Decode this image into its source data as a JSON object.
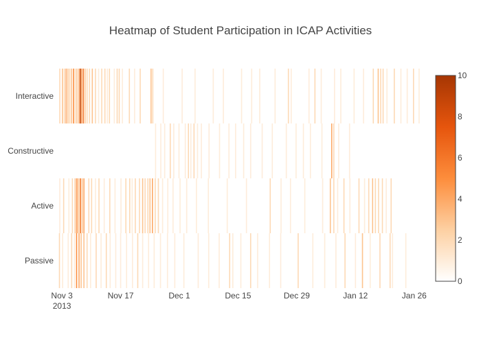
{
  "chart_data": {
    "type": "heatmap",
    "title": "Heatmap of Student Participation in ICAP Activities",
    "xlabel": "",
    "ylabel": "",
    "x_range": [
      "2013-11-02",
      "2014-01-28"
    ],
    "x_ticks": [
      {
        "date": "2013-11-03",
        "label": "Nov 3",
        "sublabel": "2013"
      },
      {
        "date": "2013-11-17",
        "label": "Nov 17",
        "sublabel": ""
      },
      {
        "date": "2013-12-01",
        "label": "Dec 1",
        "sublabel": ""
      },
      {
        "date": "2013-12-15",
        "label": "Dec 15",
        "sublabel": ""
      },
      {
        "date": "2013-12-29",
        "label": "Dec 29",
        "sublabel": ""
      },
      {
        "date": "2014-01-12",
        "label": "Jan 12",
        "sublabel": ""
      },
      {
        "date": "2014-01-26",
        "label": "Jan 26",
        "sublabel": ""
      }
    ],
    "categories": [
      "Interactive",
      "Constructive",
      "Active",
      "Passive"
    ],
    "colorscale": [
      "#ffffff",
      "#fdd0a2",
      "#fd8d3c",
      "#e6550d",
      "#a63603"
    ],
    "zmin": 0,
    "zmax": 10,
    "colorbar_ticks": [
      0,
      2,
      4,
      6,
      8,
      10
    ],
    "series": [
      {
        "category": "Interactive",
        "points": [
          [
            "2013-11-02 12:00",
            2
          ],
          [
            "2013-11-03 03:00",
            3
          ],
          [
            "2013-11-03 14:00",
            2
          ],
          [
            "2013-11-04 00:00",
            4
          ],
          [
            "2013-11-04 10:00",
            3
          ],
          [
            "2013-11-04 20:00",
            2
          ],
          [
            "2013-11-05 06:00",
            3
          ],
          [
            "2013-11-05 18:00",
            5
          ],
          [
            "2013-11-06 04:00",
            2
          ],
          [
            "2013-11-06 14:00",
            3
          ],
          [
            "2013-11-07 02:00",
            4
          ],
          [
            "2013-11-07 10:00",
            9
          ],
          [
            "2013-11-07 16:00",
            4
          ],
          [
            "2013-11-08 02:00",
            6
          ],
          [
            "2013-11-08 12:00",
            3
          ],
          [
            "2013-11-09 00:00",
            2
          ],
          [
            "2013-11-09 14:00",
            2
          ],
          [
            "2013-11-10 06:00",
            3
          ],
          [
            "2013-11-11 00:00",
            2
          ],
          [
            "2013-11-11 18:00",
            1
          ],
          [
            "2013-11-12 12:00",
            2
          ],
          [
            "2013-11-13 06:00",
            2
          ],
          [
            "2013-11-13 20:00",
            1
          ],
          [
            "2013-11-14 08:00",
            2
          ],
          [
            "2013-11-15 12:00",
            1
          ],
          [
            "2013-11-16 04:00",
            2
          ],
          [
            "2013-11-16 16:00",
            2
          ],
          [
            "2013-11-17 10:00",
            1
          ],
          [
            "2013-11-19 02:00",
            2
          ],
          [
            "2013-11-20 08:00",
            1
          ],
          [
            "2013-11-21 16:00",
            2
          ],
          [
            "2013-11-24 06:00",
            3
          ],
          [
            "2013-11-24 16:00",
            2
          ],
          [
            "2013-11-27 04:00",
            1
          ],
          [
            "2013-12-01 16:00",
            1
          ],
          [
            "2013-12-04 18:00",
            1
          ],
          [
            "2013-12-09 02:00",
            1
          ],
          [
            "2013-12-11 12:00",
            1
          ],
          [
            "2013-12-15 20:00",
            1
          ],
          [
            "2013-12-18 06:00",
            1
          ],
          [
            "2013-12-20 04:00",
            1
          ],
          [
            "2013-12-23 20:00",
            1
          ],
          [
            "2013-12-27 00:00",
            2
          ],
          [
            "2013-12-27 16:00",
            1
          ],
          [
            "2013-12-31 22:00",
            1
          ],
          [
            "2014-01-02 08:00",
            2
          ],
          [
            "2014-01-03 20:00",
            1
          ],
          [
            "2014-01-07 00:00",
            1
          ],
          [
            "2014-01-08 12:00",
            1
          ],
          [
            "2014-01-11 16:00",
            1
          ],
          [
            "2014-01-13 22:00",
            1
          ],
          [
            "2014-01-16 06:00",
            2
          ],
          [
            "2014-01-17 10:00",
            3
          ],
          [
            "2014-01-18 00:00",
            2
          ],
          [
            "2014-01-18 14:00",
            2
          ],
          [
            "2014-01-19 12:00",
            1
          ],
          [
            "2014-01-21 06:00",
            2
          ],
          [
            "2014-01-22 20:00",
            1
          ],
          [
            "2014-01-24 08:00",
            1
          ],
          [
            "2014-01-25 20:00",
            2
          ],
          [
            "2014-01-27 04:00",
            1
          ]
        ]
      },
      {
        "category": "Constructive",
        "points": [
          [
            "2013-11-25 08:00",
            1
          ],
          [
            "2013-11-26 14:00",
            1
          ],
          [
            "2013-11-27 12:00",
            1
          ],
          [
            "2013-11-28 20:00",
            2
          ],
          [
            "2013-11-29 16:00",
            1
          ],
          [
            "2013-11-30 22:00",
            1
          ],
          [
            "2013-12-02 10:00",
            1
          ],
          [
            "2013-12-03 04:00",
            2
          ],
          [
            "2013-12-03 18:00",
            1
          ],
          [
            "2013-12-04 12:00",
            2
          ],
          [
            "2013-12-05 08:00",
            1
          ],
          [
            "2013-12-06 06:00",
            1
          ],
          [
            "2013-12-08 02:00",
            1
          ],
          [
            "2013-12-10 14:00",
            1
          ],
          [
            "2013-12-12 20:00",
            1
          ],
          [
            "2013-12-14 10:00",
            1
          ],
          [
            "2013-12-16 08:00",
            1
          ],
          [
            "2013-12-18 00:00",
            1
          ],
          [
            "2013-12-20 18:00",
            1
          ],
          [
            "2013-12-23 04:00",
            1
          ],
          [
            "2013-12-26 12:00",
            1
          ],
          [
            "2013-12-28 20:00",
            1
          ],
          [
            "2013-12-30 14:00",
            1
          ],
          [
            "2014-01-01 06:00",
            1
          ],
          [
            "2014-01-04 00:00",
            1
          ],
          [
            "2014-01-06 08:00",
            4
          ],
          [
            "2014-01-06 20:00",
            2
          ],
          [
            "2014-01-08 00:00",
            1
          ],
          [
            "2014-01-10 14:00",
            1
          ]
        ]
      },
      {
        "category": "Active",
        "points": [
          [
            "2013-11-02 12:00",
            1
          ],
          [
            "2013-11-03 10:00",
            2
          ],
          [
            "2013-11-04 16:00",
            1
          ],
          [
            "2013-11-05 12:00",
            2
          ],
          [
            "2013-11-06 04:00",
            3
          ],
          [
            "2013-11-06 14:00",
            5
          ],
          [
            "2013-11-07 00:00",
            3
          ],
          [
            "2013-11-07 10:00",
            6
          ],
          [
            "2013-11-07 20:00",
            3
          ],
          [
            "2013-11-08 06:00",
            4
          ],
          [
            "2013-11-09 10:00",
            2
          ],
          [
            "2013-11-10 02:00",
            2
          ],
          [
            "2013-11-11 00:00",
            1
          ],
          [
            "2013-11-11 20:00",
            2
          ],
          [
            "2013-11-13 02:00",
            1
          ],
          [
            "2013-11-14 10:00",
            2
          ],
          [
            "2013-11-15 16:00",
            1
          ],
          [
            "2013-11-17 02:00",
            1
          ],
          [
            "2013-11-18 06:00",
            2
          ],
          [
            "2013-11-19 04:00",
            2
          ],
          [
            "2013-11-19 18:00",
            1
          ],
          [
            "2013-11-20 12:00",
            2
          ],
          [
            "2013-11-21 12:00",
            2
          ],
          [
            "2013-11-22 06:00",
            3
          ],
          [
            "2013-11-22 20:00",
            2
          ],
          [
            "2013-11-23 12:00",
            2
          ],
          [
            "2013-11-24 00:00",
            3
          ],
          [
            "2013-11-24 14:00",
            4
          ],
          [
            "2013-11-25 06:00",
            2
          ],
          [
            "2013-11-26 00:00",
            2
          ],
          [
            "2013-11-27 00:00",
            1
          ],
          [
            "2013-11-28 06:00",
            1
          ],
          [
            "2013-11-29 12:00",
            1
          ],
          [
            "2013-12-01 04:00",
            1
          ],
          [
            "2013-12-02 18:00",
            1
          ],
          [
            "2013-12-05 02:00",
            1
          ],
          [
            "2013-12-07 22:00",
            1
          ],
          [
            "2013-12-12 10:00",
            1
          ],
          [
            "2013-12-17 00:00",
            1
          ],
          [
            "2013-12-22 16:00",
            2
          ],
          [
            "2013-12-25 06:00",
            1
          ],
          [
            "2013-12-27 12:00",
            1
          ],
          [
            "2013-12-30 22:00",
            1
          ],
          [
            "2014-01-04 04:00",
            1
          ],
          [
            "2014-01-06 00:00",
            3
          ],
          [
            "2014-01-06 20:00",
            2
          ],
          [
            "2014-01-07 18:00",
            1
          ],
          [
            "2014-01-09 06:00",
            2
          ],
          [
            "2014-01-10 16:00",
            1
          ],
          [
            "2014-01-12 20:00",
            2
          ],
          [
            "2014-01-14 04:00",
            1
          ],
          [
            "2014-01-15 04:00",
            2
          ],
          [
            "2014-01-16 02:00",
            3
          ],
          [
            "2014-01-16 18:00",
            2
          ],
          [
            "2014-01-17 12:00",
            2
          ],
          [
            "2014-01-18 10:00",
            2
          ],
          [
            "2014-01-19 08:00",
            1
          ],
          [
            "2014-01-20 12:00",
            2
          ]
        ]
      },
      {
        "category": "Passive",
        "points": [
          [
            "2013-11-02 10:00",
            2
          ],
          [
            "2013-11-03 04:00",
            1
          ],
          [
            "2013-11-04 12:00",
            1
          ],
          [
            "2013-11-05 08:00",
            2
          ],
          [
            "2013-11-06 00:00",
            1
          ],
          [
            "2013-11-06 12:00",
            5
          ],
          [
            "2013-11-07 02:00",
            4
          ],
          [
            "2013-11-07 14:00",
            3
          ],
          [
            "2013-11-08 06:00",
            3
          ],
          [
            "2013-11-09 00:00",
            2
          ],
          [
            "2013-11-09 20:00",
            1
          ],
          [
            "2013-11-11 04:00",
            2
          ],
          [
            "2013-11-12 08:00",
            1
          ],
          [
            "2013-11-13 14:00",
            2
          ],
          [
            "2013-11-14 12:00",
            1
          ],
          [
            "2013-11-15 20:00",
            1
          ],
          [
            "2013-11-17 00:00",
            1
          ],
          [
            "2013-11-18 10:00",
            1
          ],
          [
            "2013-11-19 20:00",
            1
          ],
          [
            "2013-11-21 02:00",
            2
          ],
          [
            "2013-11-22 06:00",
            1
          ],
          [
            "2013-11-23 16:00",
            1
          ],
          [
            "2013-11-25 00:00",
            1
          ],
          [
            "2013-11-26 12:00",
            1
          ],
          [
            "2013-11-28 04:00",
            1
          ],
          [
            "2013-11-29 22:00",
            1
          ],
          [
            "2013-12-02 02:00",
            1
          ],
          [
            "2013-12-05 12:00",
            1
          ],
          [
            "2013-12-08 00:00",
            1
          ],
          [
            "2013-12-10 12:00",
            1
          ],
          [
            "2013-12-13 00:00",
            2
          ],
          [
            "2013-12-13 18:00",
            1
          ],
          [
            "2013-12-15 16:00",
            1
          ],
          [
            "2013-12-18 00:00",
            2
          ],
          [
            "2013-12-19 16:00",
            1
          ],
          [
            "2013-12-22 12:00",
            1
          ],
          [
            "2013-12-25 04:00",
            1
          ],
          [
            "2013-12-29 08:00",
            2
          ],
          [
            "2014-01-01 20:00",
            1
          ],
          [
            "2014-01-04 16:00",
            1
          ],
          [
            "2014-01-07 08:00",
            1
          ],
          [
            "2014-01-09 12:00",
            2
          ],
          [
            "2014-01-12 00:00",
            1
          ],
          [
            "2014-01-13 16:00",
            3
          ],
          [
            "2014-01-15 12:00",
            1
          ],
          [
            "2014-01-17 20:00",
            2
          ],
          [
            "2014-01-20 06:00",
            2
          ],
          [
            "2014-01-20 20:00",
            1
          ],
          [
            "2014-01-24 00:00",
            1
          ]
        ]
      }
    ]
  }
}
